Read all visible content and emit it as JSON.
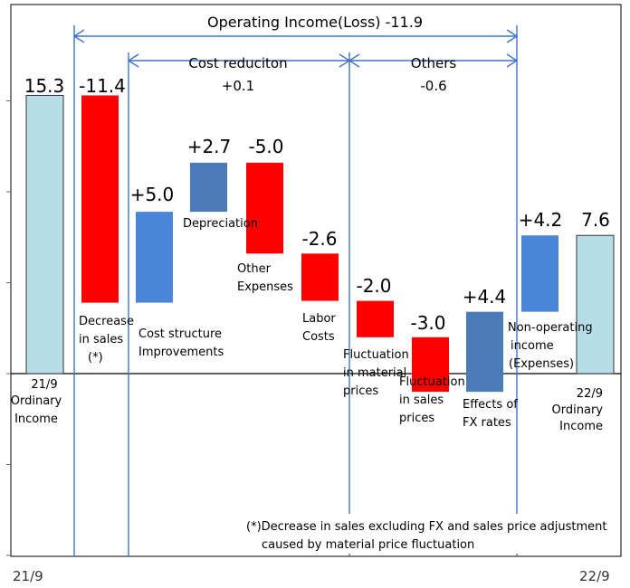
{
  "chart_data": {
    "type": "waterfall",
    "ylim": [
      -20,
      40
    ],
    "grid": false,
    "bars": [
      {
        "id": "ordinary-income-21-9",
        "label": [
          "21/9",
          "Ordinary",
          "Income"
        ],
        "value_label": "15.3",
        "start": 0,
        "end": 15.3,
        "color": "#b7dde8"
      },
      {
        "id": "decrease-in-sales",
        "label": [
          "Decrease",
          "in sales",
          "(*)"
        ],
        "value_label": "-11.4",
        "start": 15.3,
        "end": 3.9,
        "color": "#ff0000"
      },
      {
        "id": "cost-structure-improvements",
        "label": [
          "Cost structure",
          "Improvements"
        ],
        "value_label": "+5.0",
        "start": 3.9,
        "end": 8.9,
        "color": "#4a86d8"
      },
      {
        "id": "depreciation",
        "label": [
          "Depreciation"
        ],
        "value_label": "+2.7",
        "start": 8.9,
        "end": 11.6,
        "color": "#4a7ab8"
      },
      {
        "id": "other-expenses",
        "label": [
          "Other",
          "Expenses"
        ],
        "value_label": "-5.0",
        "start": 11.6,
        "end": 6.6,
        "color": "#ff0000"
      },
      {
        "id": "labor-costs",
        "label": [
          "Labor",
          "Costs"
        ],
        "value_label": "-2.6",
        "start": 6.6,
        "end": 4.0,
        "color": "#ff0000"
      },
      {
        "id": "fluctuation-material-prices",
        "label": [
          "Fluctuation",
          "in material",
          "prices"
        ],
        "value_label": "-2.0",
        "start": 4.0,
        "end": 2.0,
        "color": "#ff0000"
      },
      {
        "id": "fluctuation-sales-prices",
        "label": [
          "Fluctuation",
          "in sales",
          "prices"
        ],
        "value_label": "-3.0",
        "start": 2.0,
        "end": -1.0,
        "color": "#ff0000"
      },
      {
        "id": "effects-of-fx-rates",
        "label": [
          "Effects of",
          "FX rates"
        ],
        "value_label": "+4.4",
        "start": -1.0,
        "end": 3.4,
        "color": "#4a7ab8"
      },
      {
        "id": "non-operating-income",
        "label": [
          "Non-operating",
          "income",
          "(Expenses)"
        ],
        "value_label": "+4.2",
        "start": 3.4,
        "end": 7.6,
        "color": "#4a86d8"
      },
      {
        "id": "ordinary-income-22-9",
        "label": [
          "22/9",
          "Ordinary",
          "Income"
        ],
        "value_label": "7.6",
        "start": 0,
        "end": 7.6,
        "color": "#b7dde8"
      }
    ],
    "brackets": [
      {
        "id": "operating-income",
        "text": [
          "Operating Income(Loss) -11.9"
        ]
      },
      {
        "id": "cost-reduction",
        "text": [
          "Cost reduciton",
          "+0.1"
        ]
      },
      {
        "id": "others",
        "text": [
          "Others",
          "-0.6"
        ]
      }
    ],
    "footnote": [
      "(*)Decrease in sales excluding FX and sales price adjustment",
      "caused by material price fluctuation"
    ]
  },
  "footer": {
    "left_label": "21/9",
    "right_label": "22/9"
  }
}
